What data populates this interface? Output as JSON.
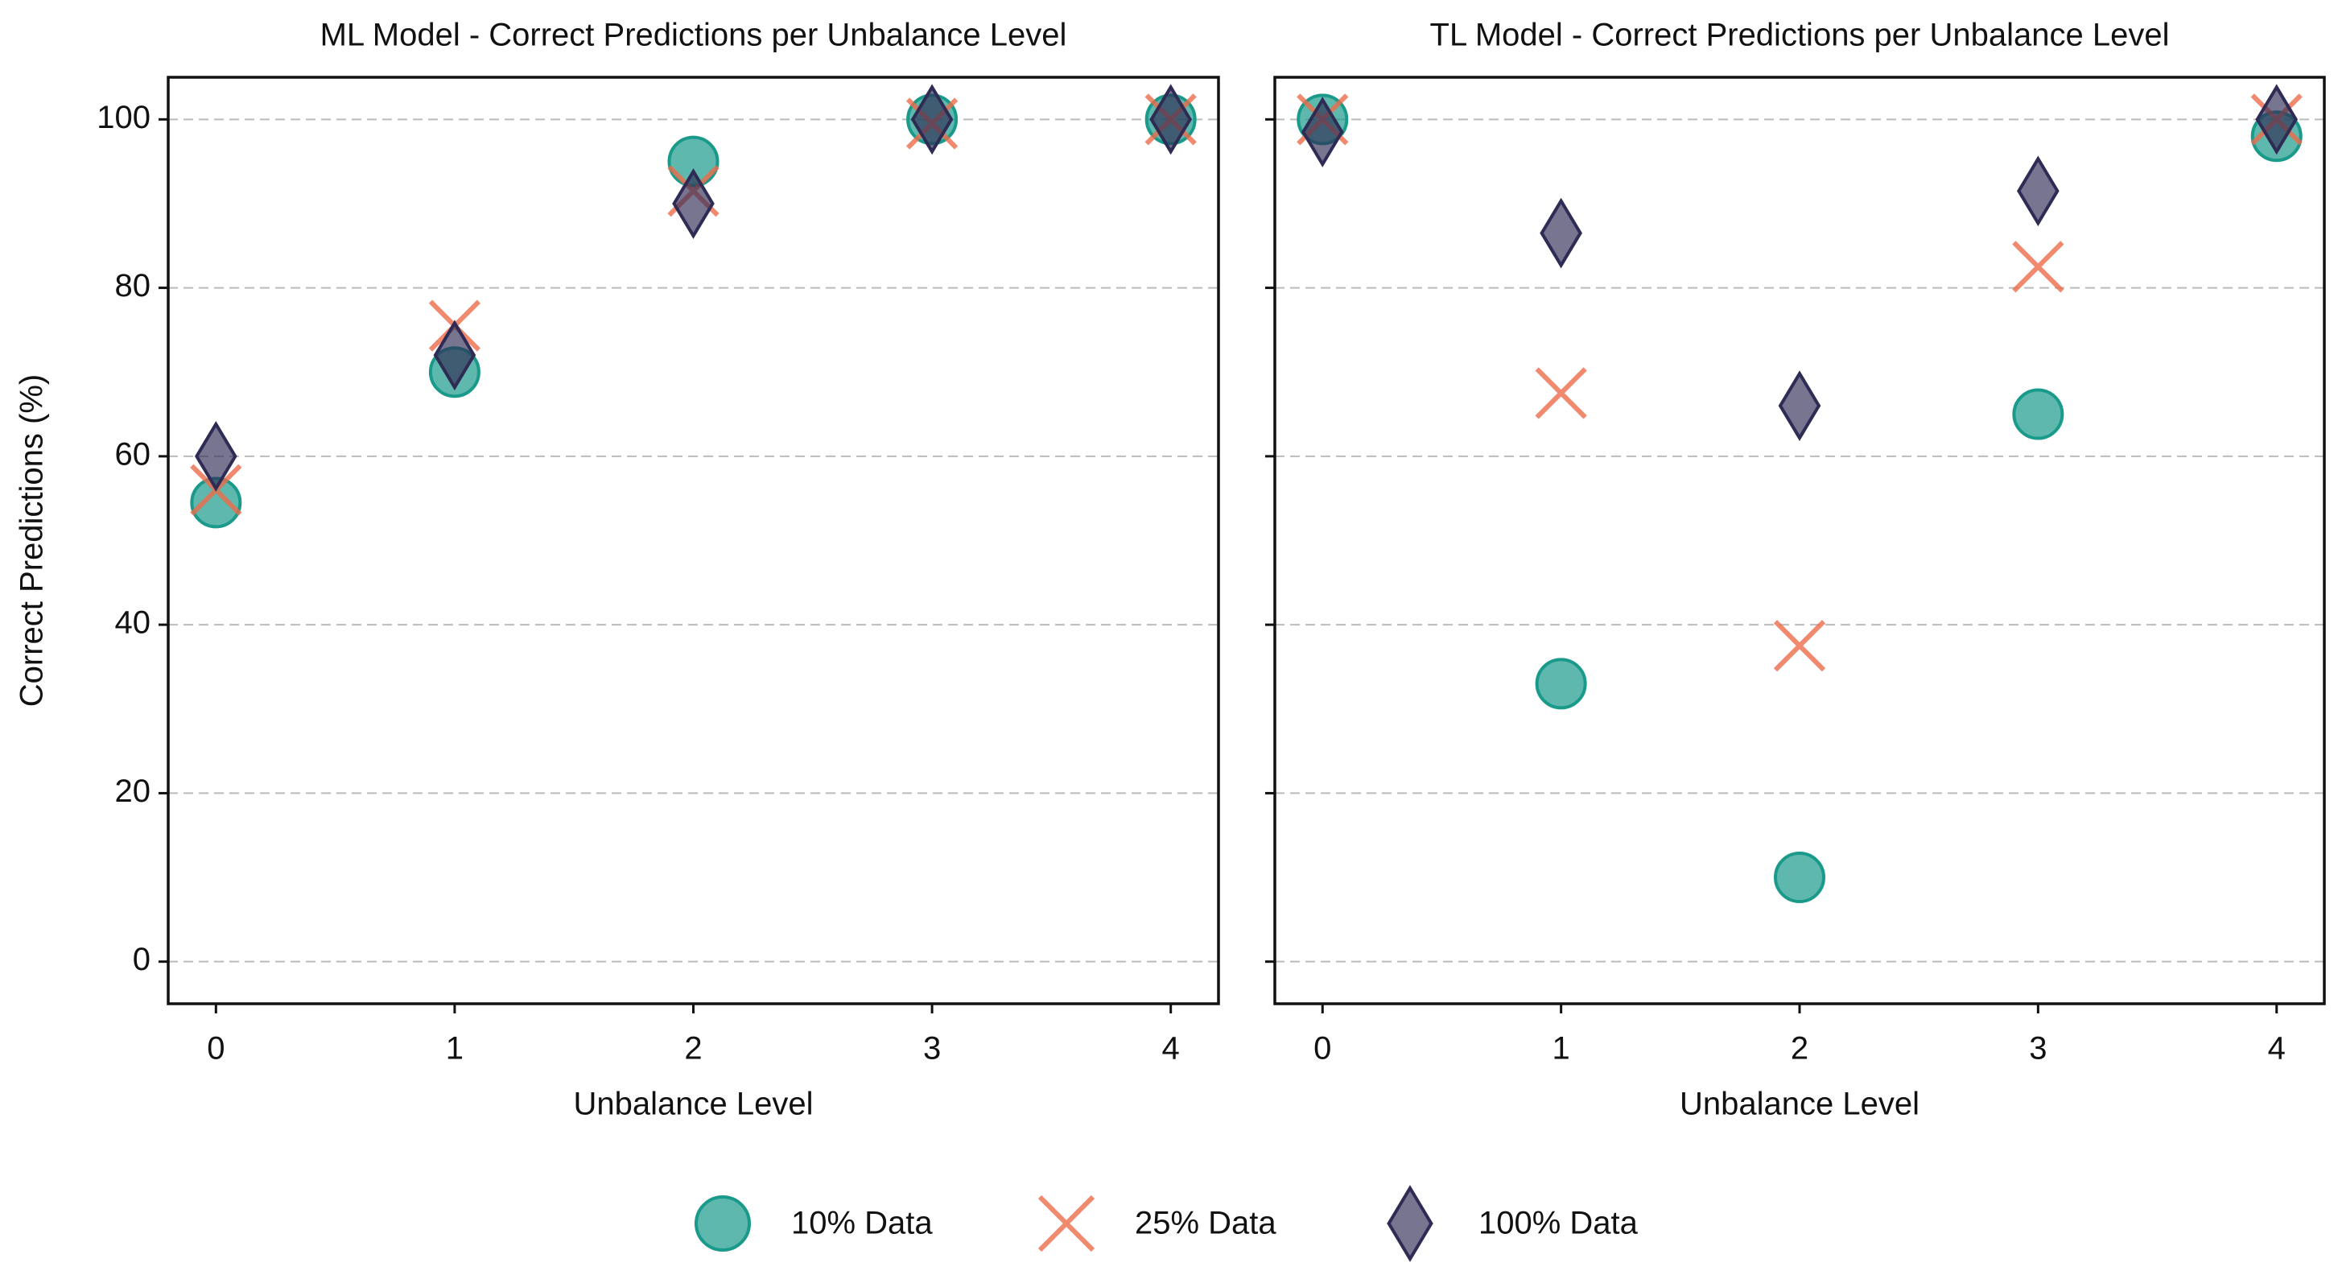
{
  "chart_data": [
    {
      "type": "scatter",
      "title": "ML Model - Correct Predictions per Unbalance Level",
      "x_label": "Unbalance Level",
      "y_label": "Correct Predictions (%)",
      "x": [
        0,
        1,
        2,
        3,
        4
      ],
      "xlim": [
        -0.2,
        4.2
      ],
      "xticks": [
        0,
        1,
        2,
        3,
        4
      ],
      "ylim": [
        -5,
        105
      ],
      "yticks": [
        0,
        20,
        40,
        60,
        80,
        100
      ],
      "ytick_labels": true,
      "grid": true,
      "series": [
        {
          "name": "10% Data",
          "marker": "circle",
          "color": "#1a9a8a",
          "values": [
            54.5,
            70,
            95,
            100,
            100
          ]
        },
        {
          "name": "25% Data",
          "marker": "x",
          "color": "#ec6b4a",
          "values": [
            56,
            75.5,
            91.5,
            99.5,
            100
          ]
        },
        {
          "name": "100% Data",
          "marker": "diamond",
          "color": "#2e2b55",
          "values": [
            60,
            72,
            90,
            100,
            100
          ]
        }
      ]
    },
    {
      "type": "scatter",
      "title": "TL Model - Correct Predictions per Unbalance Level",
      "x_label": "Unbalance Level",
      "x": [
        0,
        1,
        2,
        3,
        4
      ],
      "xlim": [
        -0.2,
        4.2
      ],
      "xticks": [
        0,
        1,
        2,
        3,
        4
      ],
      "ylim": [
        -5,
        105
      ],
      "yticks": [
        0,
        20,
        40,
        60,
        80,
        100
      ],
      "ytick_labels": false,
      "grid": true,
      "series": [
        {
          "marker": "circle",
          "color": "#1a9a8a",
          "values": [
            100,
            33,
            10,
            65,
            98
          ]
        },
        {
          "marker": "x",
          "color": "#ec6b4a",
          "values": [
            100,
            67.5,
            37.5,
            82.5,
            100
          ]
        },
        {
          "marker": "diamond",
          "color": "#2e2b55",
          "values": [
            98.5,
            86.5,
            66,
            91.5,
            100
          ]
        }
      ]
    }
  ]
}
